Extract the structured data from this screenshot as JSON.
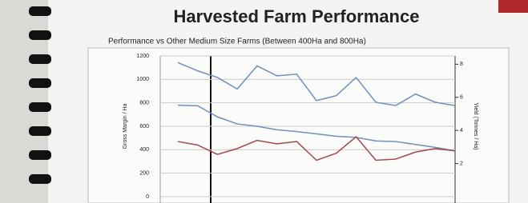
{
  "chart_data": {
    "type": "line",
    "title": "Harvested Farm Performance",
    "subtitle": "Performance vs Other Medium Size Farms (Between 400Ha and 800Ha)",
    "y_label": "Gross Margin / Ha",
    "y2_label": "Yield (Tonnes / Ha)",
    "categories": [
      null,
      null,
      null,
      null,
      null,
      null,
      null,
      null,
      null,
      null,
      null,
      null,
      null,
      null,
      null
    ],
    "series": [
      {
        "color": "#6f8fbd",
        "axis": "y2",
        "values": [
          8.1,
          7.6,
          7.2,
          6.5,
          7.9,
          7.3,
          7.4,
          5.8,
          6.1,
          7.2,
          5.7,
          5.5,
          6.2,
          5.7,
          5.5
        ]
      },
      {
        "color": "#6f8fbd",
        "values": [
          780,
          775,
          680,
          620,
          600,
          570,
          555,
          535,
          515,
          505,
          475,
          470,
          445,
          420,
          390
        ]
      },
      {
        "color": "#a3464f",
        "values": [
          470,
          440,
          360,
          410,
          480,
          450,
          470,
          310,
          370,
          510,
          310,
          320,
          380,
          410,
          390
        ]
      }
    ],
    "ylim": [
      0,
      1200
    ],
    "yticks": [
      0,
      200,
      400,
      600,
      800,
      1000,
      1200
    ],
    "y2lim": [
      0,
      8.5
    ],
    "y2ticks": [
      2,
      4,
      6,
      8
    ],
    "grid": true
  }
}
